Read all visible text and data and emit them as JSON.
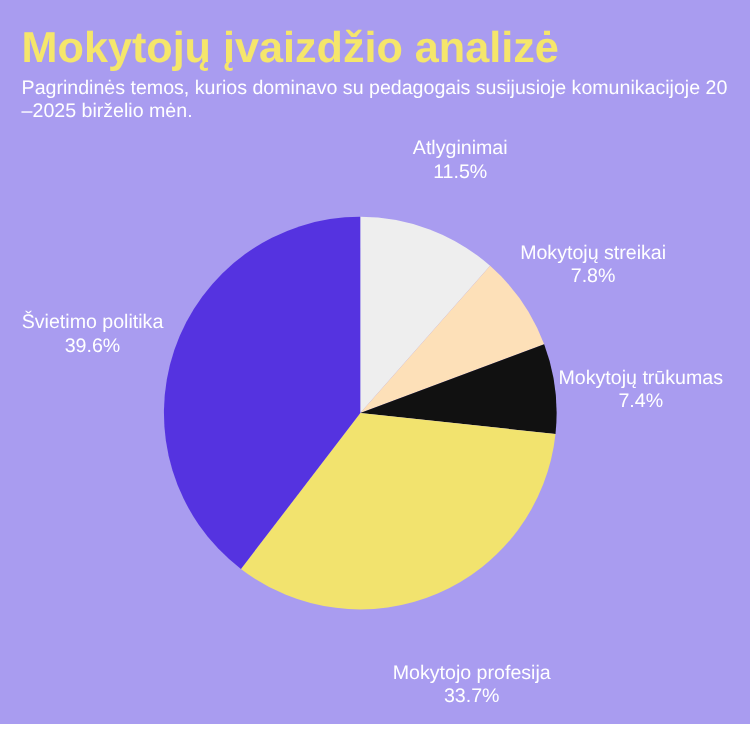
{
  "chart_data": {
    "type": "pie",
    "title": "Mokytojų įvaizdžio analizė",
    "subtitle": [
      "Pagrindinės temos, kurios dominavo su pedagogais susijusioje komunikacijoje 20",
      "–2025 birželio mėn."
    ],
    "categories": [
      "Atlyginimai",
      "Mokytojų streikai",
      "Mokytojų trūkumas",
      "Mokytojo profesija",
      "Švietimo politika"
    ],
    "values": [
      11.5,
      7.8,
      7.4,
      33.7,
      39.6
    ],
    "value_labels": [
      "11.5%",
      "7.8%",
      "7.4%",
      "33.7%",
      "39.6%"
    ],
    "colors": [
      "#eeeeee",
      "#fde0b8",
      "#111111",
      "#f2e36e",
      "#5533e0"
    ],
    "legend": false
  }
}
